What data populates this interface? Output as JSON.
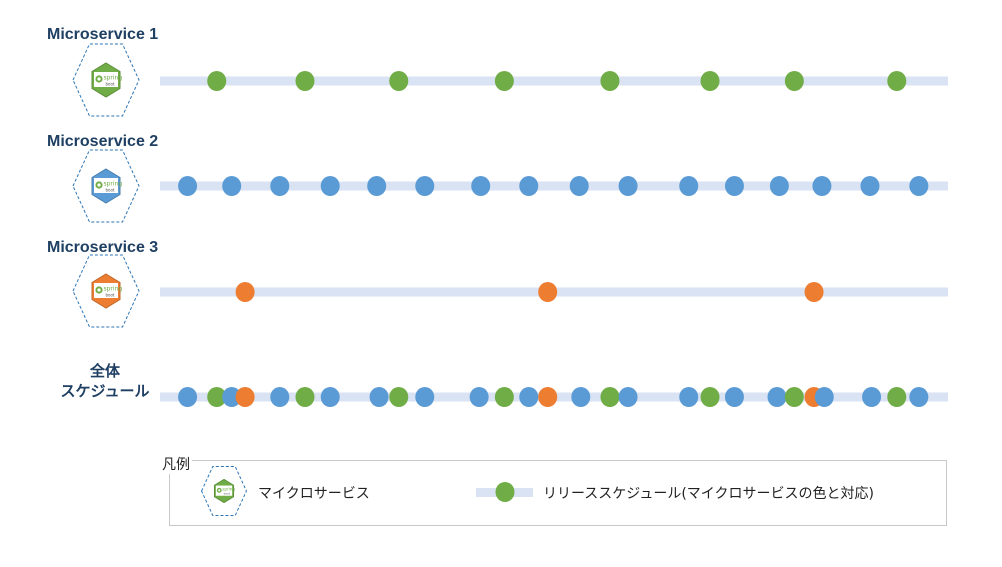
{
  "colors": {
    "green": "#70ad47",
    "blue": "#5b9bd5",
    "orange": "#ed7d31",
    "track": "#dae3f3",
    "hex_border": "#2e75b6"
  },
  "rows": [
    {
      "title": "Microservice 1",
      "color": "green",
      "icon": "spring-boot-icon",
      "icon_text": [
        "spring",
        "boot"
      ],
      "releases": [
        0.072,
        0.184,
        0.303,
        0.437,
        0.571,
        0.698,
        0.805,
        0.935
      ]
    },
    {
      "title": "Microservice 2",
      "color": "blue",
      "icon": "spring-boot-icon",
      "icon_text": [
        "spring",
        "boot"
      ],
      "releases": [
        0.035,
        0.091,
        0.152,
        0.216,
        0.275,
        0.336,
        0.407,
        0.468,
        0.532,
        0.594,
        0.671,
        0.729,
        0.786,
        0.84,
        0.901,
        0.963
      ]
    },
    {
      "title": "Microservice 3",
      "color": "orange",
      "icon": "spring-boot-icon",
      "icon_text": [
        "spring",
        "boot"
      ],
      "releases": [
        0.108,
        0.492,
        0.83
      ]
    }
  ],
  "total": {
    "title_lines": [
      "全体",
      "スケジュール"
    ],
    "releases": [
      {
        "pos": 0.035,
        "color": "blue"
      },
      {
        "pos": 0.072,
        "color": "green"
      },
      {
        "pos": 0.091,
        "color": "blue"
      },
      {
        "pos": 0.108,
        "color": "orange"
      },
      {
        "pos": 0.152,
        "color": "blue"
      },
      {
        "pos": 0.184,
        "color": "green"
      },
      {
        "pos": 0.216,
        "color": "blue"
      },
      {
        "pos": 0.278,
        "color": "blue"
      },
      {
        "pos": 0.303,
        "color": "green"
      },
      {
        "pos": 0.336,
        "color": "blue"
      },
      {
        "pos": 0.405,
        "color": "blue"
      },
      {
        "pos": 0.437,
        "color": "green"
      },
      {
        "pos": 0.468,
        "color": "blue"
      },
      {
        "pos": 0.492,
        "color": "orange"
      },
      {
        "pos": 0.534,
        "color": "blue"
      },
      {
        "pos": 0.571,
        "color": "green"
      },
      {
        "pos": 0.594,
        "color": "blue"
      },
      {
        "pos": 0.671,
        "color": "blue"
      },
      {
        "pos": 0.698,
        "color": "green"
      },
      {
        "pos": 0.729,
        "color": "blue"
      },
      {
        "pos": 0.783,
        "color": "blue"
      },
      {
        "pos": 0.805,
        "color": "green"
      },
      {
        "pos": 0.83,
        "color": "orange"
      },
      {
        "pos": 0.843,
        "color": "blue"
      },
      {
        "pos": 0.903,
        "color": "blue"
      },
      {
        "pos": 0.935,
        "color": "green"
      },
      {
        "pos": 0.963,
        "color": "blue"
      }
    ]
  },
  "legend": {
    "title": "凡例",
    "microservice_label": "マイクロサービス",
    "schedule_label": "リリーススケジュール(マイクロサービスの色と対応)"
  }
}
